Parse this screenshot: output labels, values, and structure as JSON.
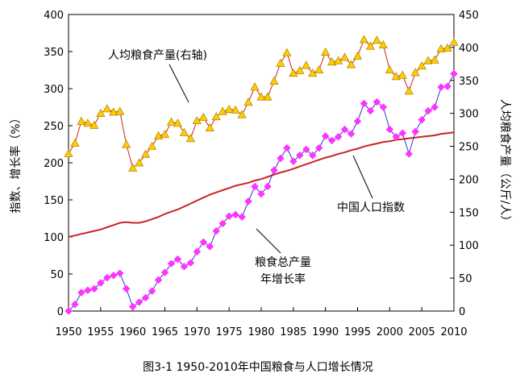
{
  "chart_data": {
    "type": "line",
    "caption": "图3-1   1950-2010年中国粮食与人口增长情况",
    "y_left_label": "指数、增长率（%）",
    "y_right_label": "人均粮食产量（公斤/人）",
    "y_left_range": [
      0,
      400
    ],
    "y_right_range": [
      0,
      450
    ],
    "y_left_ticks": [
      "0",
      "50",
      "100",
      "150",
      "200",
      "250",
      "300",
      "350",
      "400"
    ],
    "y_right_ticks": [
      "0",
      "50",
      "100",
      "150",
      "200",
      "250",
      "300",
      "350",
      "400",
      "450"
    ],
    "x_range": [
      1950,
      2010
    ],
    "x_ticks": [
      "1950",
      "1955",
      "1960",
      "1965",
      "1970",
      "1975",
      "1980",
      "1985",
      "1990",
      "1995",
      "2000",
      "2005",
      "2010"
    ],
    "annotations": {
      "per_capita": "人均粮食产量(右轴)",
      "population": "中国人口指数",
      "growth_line1": "粮食总产量",
      "growth_line2": "年增长率"
    },
    "series": [
      {
        "name": "人均粮食产量(右轴)",
        "axis": "right",
        "color": "#cc2222",
        "marker": "triangle",
        "marker_color": "#ffcc00",
        "x": [
          1950,
          1951,
          1952,
          1953,
          1954,
          1955,
          1956,
          1957,
          1958,
          1959,
          1960,
          1961,
          1962,
          1963,
          1964,
          1965,
          1966,
          1967,
          1968,
          1969,
          1970,
          1971,
          1972,
          1973,
          1974,
          1975,
          1976,
          1977,
          1978,
          1979,
          1980,
          1981,
          1982,
          1983,
          1984,
          1985,
          1986,
          1987,
          1988,
          1989,
          1990,
          1991,
          1992,
          1993,
          1994,
          1995,
          1996,
          1997,
          1998,
          1999,
          2000,
          2001,
          2002,
          2003,
          2004,
          2005,
          2006,
          2007,
          2008,
          2009,
          2010
        ],
        "values": [
          239,
          255,
          288,
          285,
          282,
          300,
          307,
          302,
          303,
          253,
          217,
          225,
          238,
          250,
          266,
          268,
          287,
          285,
          271,
          262,
          289,
          294,
          278,
          295,
          303,
          306,
          305,
          298,
          317,
          340,
          325,
          325,
          349,
          376,
          392,
          361,
          365,
          373,
          361,
          366,
          393,
          378,
          380,
          385,
          374,
          387,
          412,
          402,
          411,
          404,
          366,
          356,
          358,
          334,
          362,
          372,
          380,
          381,
          398,
          399,
          408
        ]
      },
      {
        "name": "中国人口指数",
        "axis": "left",
        "color": "#cc2222",
        "marker": "none",
        "x": [
          1950,
          1951,
          1952,
          1953,
          1954,
          1955,
          1956,
          1957,
          1958,
          1959,
          1960,
          1961,
          1962,
          1963,
          1964,
          1965,
          1966,
          1967,
          1968,
          1969,
          1970,
          1971,
          1972,
          1973,
          1974,
          1975,
          1976,
          1977,
          1978,
          1979,
          1980,
          1981,
          1982,
          1983,
          1984,
          1985,
          1986,
          1987,
          1988,
          1989,
          1990,
          1991,
          1992,
          1993,
          1994,
          1995,
          1996,
          1997,
          1998,
          1999,
          2000,
          2001,
          2002,
          2003,
          2004,
          2005,
          2006,
          2007,
          2008,
          2009,
          2010
        ],
        "values": [
          100,
          102,
          104,
          106,
          108,
          110,
          113,
          116,
          119,
          120,
          119,
          119,
          121,
          124,
          127,
          131,
          134,
          137,
          141,
          145,
          149,
          153,
          157,
          160,
          163,
          166,
          169,
          171,
          173,
          176,
          178,
          181,
          184,
          187,
          189,
          192,
          195,
          198,
          201,
          204,
          207,
          209,
          212,
          214,
          217,
          219,
          222,
          224,
          226,
          228,
          229,
          231,
          232,
          233,
          234,
          235,
          236,
          237,
          239,
          240,
          241
        ]
      },
      {
        "name": "粮食总产量年增长率",
        "axis": "left",
        "color": "#3333cc",
        "marker": "diamond",
        "marker_color": "#ff33ff",
        "x": [
          1950,
          1951,
          1952,
          1953,
          1954,
          1955,
          1956,
          1957,
          1958,
          1959,
          1960,
          1961,
          1962,
          1963,
          1964,
          1965,
          1966,
          1967,
          1968,
          1969,
          1970,
          1971,
          1972,
          1973,
          1974,
          1975,
          1976,
          1977,
          1978,
          1979,
          1980,
          1981,
          1982,
          1983,
          1984,
          1985,
          1986,
          1987,
          1988,
          1989,
          1990,
          1991,
          1992,
          1993,
          1994,
          1995,
          1996,
          1997,
          1998,
          1999,
          2000,
          2001,
          2002,
          2003,
          2004,
          2005,
          2006,
          2007,
          2008,
          2009,
          2010
        ],
        "values": [
          0,
          9,
          25,
          28,
          30,
          38,
          45,
          48,
          51,
          30,
          6,
          12,
          18,
          27,
          42,
          52,
          64,
          70,
          60,
          65,
          80,
          93,
          87,
          108,
          118,
          128,
          130,
          127,
          148,
          168,
          158,
          168,
          190,
          206,
          220,
          202,
          210,
          218,
          210,
          220,
          236,
          230,
          235,
          245,
          239,
          256,
          280,
          270,
          282,
          275,
          245,
          235,
          240,
          212,
          242,
          258,
          270,
          275,
          302,
          303,
          320
        ]
      }
    ]
  }
}
